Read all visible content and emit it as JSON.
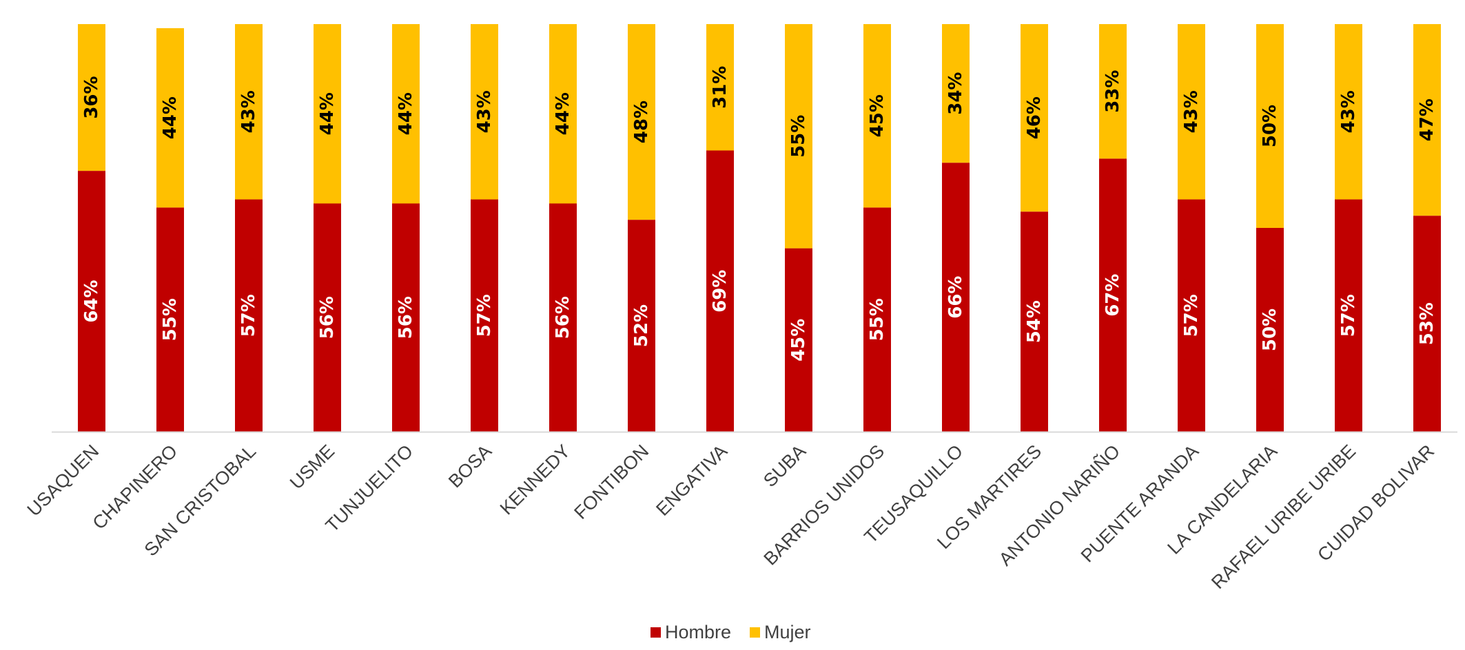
{
  "chart_data": {
    "type": "bar",
    "stacked": true,
    "percent": true,
    "title": "",
    "xlabel": "",
    "ylabel": "",
    "ylim": [
      0,
      100
    ],
    "grid": false,
    "legend_position": "bottom",
    "categories": [
      "USAQUEN",
      "CHAPINERO",
      "SAN CRISTOBAL",
      "USME",
      "TUNJUELITO",
      "BOSA",
      "KENNEDY",
      "FONTIBON",
      "ENGATIVA",
      "SUBA",
      "BARRIOS UNIDOS",
      "TEUSAQUILLO",
      "LOS MARTIRES",
      "ANTONIO NARIÑO",
      "PUENTE ARANDA",
      "LA CANDELARIA",
      "RAFAEL URIBE URIBE",
      "CUIDAD BOLIVAR"
    ],
    "series": [
      {
        "name": "Hombre",
        "color": "#C00000",
        "label_color": "#ffffff",
        "values": [
          64,
          55,
          57,
          56,
          56,
          57,
          56,
          52,
          69,
          45,
          55,
          66,
          54,
          67,
          57,
          50,
          57,
          53
        ],
        "labels": [
          "64%",
          "55%",
          "57%",
          "56%",
          "56%",
          "57%",
          "56%",
          "52%",
          "69%",
          "45%",
          "55%",
          "66%",
          "54%",
          "67%",
          "57%",
          "50%",
          "57%",
          "53%"
        ]
      },
      {
        "name": "Mujer",
        "color": "#FFC000",
        "label_color": "#000000",
        "values": [
          36,
          44,
          43,
          44,
          44,
          43,
          44,
          48,
          31,
          55,
          45,
          34,
          46,
          33,
          43,
          50,
          43,
          47
        ],
        "labels": [
          "36%",
          "44%",
          "43%",
          "44%",
          "44%",
          "43%",
          "44%",
          "48%",
          "31%",
          "55%",
          "45%",
          "34%",
          "46%",
          "33%",
          "43%",
          "50%",
          "43%",
          "47%"
        ]
      }
    ],
    "axis_color": "#d9d9d9"
  }
}
